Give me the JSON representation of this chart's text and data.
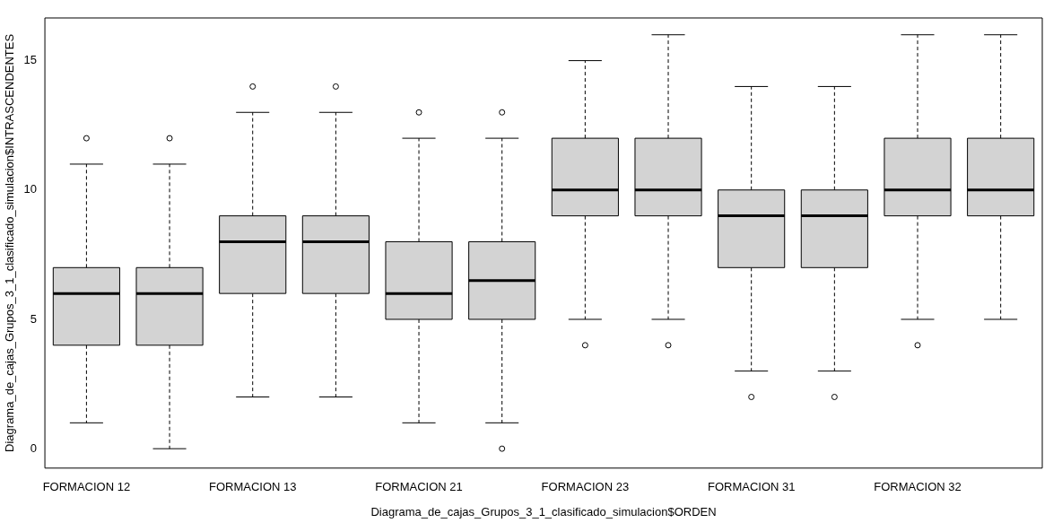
{
  "chart_data": {
    "type": "box",
    "xlabel": "Diagrama_de_cajas_Grupos_3_1_clasificado_simulacion$ORDEN",
    "ylabel": "Diagrama_de_cajas_Grupos_3_1_clasificado_simulacion$INTRASCENDENTES",
    "categories": [
      "FORMACION 12",
      null,
      "FORMACION 13",
      null,
      "FORMACION 21",
      null,
      "FORMACION 23",
      null,
      "FORMACION 31",
      null,
      "FORMACION 32",
      null
    ],
    "series": [
      {
        "color": "#d3d3d3",
        "boxes": [
          {
            "low": 1,
            "q1": 4,
            "median": 6,
            "q3": 7,
            "high": 11,
            "outliers": [
              12
            ]
          },
          {
            "low": 0,
            "q1": 4,
            "median": 6,
            "q3": 7,
            "high": 11,
            "outliers": [
              12
            ]
          },
          {
            "low": 2,
            "q1": 6,
            "median": 8,
            "q3": 9,
            "high": 13,
            "outliers": [
              14
            ]
          },
          {
            "low": 2,
            "q1": 6,
            "median": 8,
            "q3": 9,
            "high": 13,
            "outliers": [
              14
            ]
          },
          {
            "low": 1,
            "q1": 5,
            "median": 6,
            "q3": 8,
            "high": 12,
            "outliers": [
              13
            ]
          },
          {
            "low": 1,
            "q1": 5,
            "median": 6.5,
            "q3": 8,
            "high": 12,
            "outliers": [
              13,
              0
            ]
          },
          {
            "low": 5,
            "q1": 9,
            "median": 10,
            "q3": 12,
            "high": 15,
            "outliers": [
              4
            ]
          },
          {
            "low": 5,
            "q1": 9,
            "median": 10,
            "q3": 12,
            "high": 16,
            "outliers": [
              4
            ]
          },
          {
            "low": 3,
            "q1": 7,
            "median": 9,
            "q3": 10,
            "high": 14,
            "outliers": [
              2
            ]
          },
          {
            "low": 3,
            "q1": 7,
            "median": 9,
            "q3": 10,
            "high": 14,
            "outliers": [
              2
            ]
          },
          {
            "low": 5,
            "q1": 9,
            "median": 10,
            "q3": 12,
            "high": 16,
            "outliers": [
              4
            ]
          },
          {
            "low": 5,
            "q1": 9,
            "median": 10,
            "q3": 12,
            "high": 16
          }
        ]
      }
    ],
    "ylim": [
      -0.75,
      16.65
    ],
    "yticks": [
      0,
      5,
      10,
      15
    ]
  }
}
